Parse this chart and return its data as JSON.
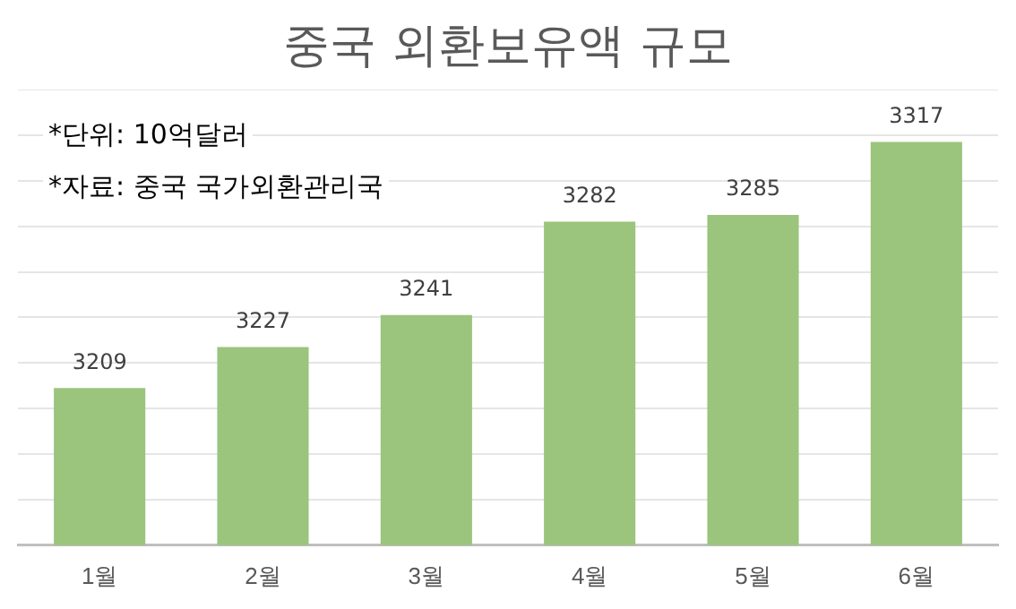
{
  "chart_data": {
    "type": "bar",
    "title": "중국 외환보유액 규모",
    "annotations": [
      "*단위: 10억달러",
      "*자료: 중국 국가외환관리국"
    ],
    "categories": [
      "1월",
      "2월",
      "3월",
      "4월",
      "5월",
      "6월"
    ],
    "values": [
      3209,
      3227,
      3241,
      3282,
      3285,
      3317
    ],
    "color": "#9bc47c",
    "ylim": [
      3140,
      3340
    ],
    "yticks": [
      {
        "value": 3140,
        "label": null
      },
      {
        "value": 3160,
        "label": null
      },
      {
        "value": 3180,
        "label": null
      },
      {
        "value": 3200,
        "label": null
      },
      {
        "value": 3220,
        "label": null
      },
      {
        "value": 3240,
        "label": null
      },
      {
        "value": 3260,
        "label": null
      },
      {
        "value": 3280,
        "label": null
      },
      {
        "value": 3300,
        "label": null
      },
      {
        "value": 3320,
        "label": null
      },
      {
        "value": 3340,
        "label": null
      }
    ],
    "tick_labels": "x",
    "grid": "y",
    "data_labels": true,
    "legend": false
  }
}
